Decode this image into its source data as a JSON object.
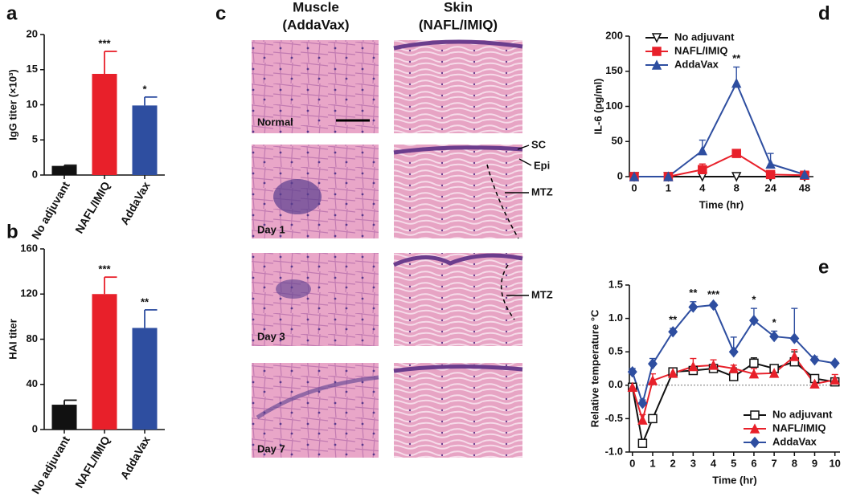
{
  "chart_data": [
    {
      "type": "bar",
      "panel": "a",
      "ylabel": "IgG titer (×10³)",
      "categories": [
        "No adjuvant",
        "NAFL/IMIQ",
        "AddaVax"
      ],
      "values": [
        1.3,
        14.4,
        9.9
      ],
      "errors": [
        0.1,
        3.2,
        1.2
      ],
      "significance": [
        null,
        "***",
        "*"
      ],
      "colors": [
        "#111111",
        "#e8202a",
        "#2e4ea0"
      ],
      "ylim": [
        0,
        20
      ],
      "yticks": [
        0,
        5,
        10,
        15,
        20
      ]
    },
    {
      "type": "bar",
      "panel": "b",
      "ylabel": "HAI titer",
      "categories": [
        "No adjuvant",
        "NAFL/IMIQ",
        "AddaVax"
      ],
      "values": [
        22,
        120,
        90
      ],
      "errors": [
        4,
        15,
        16
      ],
      "significance": [
        null,
        "***",
        "**"
      ],
      "colors": [
        "#111111",
        "#e8202a",
        "#2e4ea0"
      ],
      "ylim": [
        0,
        160
      ],
      "yticks": [
        0,
        40,
        80,
        120,
        160
      ]
    },
    {
      "type": "line",
      "panel": "d",
      "ylabel": "IL-6 (pg/ml)",
      "xlabel": "Time (hr)",
      "categories": [
        "0",
        "1",
        "4",
        "8",
        "24",
        "48"
      ],
      "series": [
        {
          "name": "No adjuvant",
          "color": "#111111",
          "marker": "triangle-down-open",
          "values": [
            0,
            0,
            0,
            0,
            0,
            0
          ],
          "errors": [
            0,
            0,
            0,
            0,
            0,
            0
          ]
        },
        {
          "name": "NAFL/IMIQ",
          "color": "#e8202a",
          "marker": "square",
          "values": [
            0,
            0,
            10,
            33,
            3,
            2
          ],
          "errors": [
            0,
            0,
            8,
            4,
            2,
            1
          ]
        },
        {
          "name": "AddaVax",
          "color": "#2e4ea0",
          "marker": "triangle-up",
          "values": [
            0,
            0,
            37,
            133,
            18,
            3
          ],
          "errors": [
            0,
            0,
            15,
            23,
            15,
            1
          ]
        }
      ],
      "significance": [
        null,
        null,
        null,
        "**",
        null,
        null
      ],
      "ylim": [
        0,
        200
      ],
      "yticks": [
        0,
        50,
        100,
        150,
        200
      ],
      "legend": "upper left"
    },
    {
      "type": "line",
      "panel": "e",
      "ylabel": "Relative temperature °C",
      "xlabel": "Time (hr)",
      "x": [
        0,
        0.5,
        1,
        2,
        3,
        4,
        5,
        6,
        7,
        8,
        9,
        10
      ],
      "series": [
        {
          "name": "No adjuvant",
          "color": "#111111",
          "marker": "square-open",
          "values": [
            -0.03,
            -0.87,
            -0.5,
            0.2,
            0.22,
            0.25,
            0.13,
            0.33,
            0.25,
            0.35,
            0.1,
            0.05
          ],
          "errors": [
            0.03,
            0.03,
            0.03,
            0.03,
            0.05,
            0.03,
            0.13,
            0.08,
            0.04,
            0.15,
            0.03,
            0.04
          ]
        },
        {
          "name": "NAFL/IMIQ",
          "color": "#e8202a",
          "marker": "triangle-up",
          "values": [
            -0.03,
            -0.52,
            0.07,
            0.18,
            0.28,
            0.3,
            0.25,
            0.17,
            0.18,
            0.43,
            0.02,
            0.08
          ],
          "errors": [
            0.03,
            0.08,
            0.1,
            0.05,
            0.12,
            0.08,
            0.05,
            0.08,
            0.05,
            0.1,
            0.05,
            0.08
          ]
        },
        {
          "name": "AddaVax",
          "color": "#2e4ea0",
          "marker": "diamond",
          "values": [
            0.2,
            -0.27,
            0.32,
            0.8,
            1.17,
            1.2,
            0.5,
            0.97,
            0.73,
            0.7,
            0.38,
            0.33
          ],
          "errors": [
            0.05,
            0.05,
            0.08,
            0.05,
            0.08,
            0.03,
            0.22,
            0.18,
            0.08,
            0.45,
            0.05,
            0.02
          ]
        }
      ],
      "significance": [
        null,
        null,
        null,
        "**",
        "**",
        "***",
        null,
        "*",
        "*",
        null,
        null,
        null
      ],
      "xlim": [
        -0.15,
        10.25
      ],
      "xticks": [
        0,
        1,
        2,
        3,
        4,
        5,
        6,
        7,
        8,
        9,
        10
      ],
      "ylim": [
        -1.0,
        1.5
      ],
      "yticks": [
        {
          "value": -1.0,
          "label": "-1.0"
        },
        -0.5,
        {
          "value": 0,
          "label": "0.0"
        },
        0.5,
        {
          "value": 1.0,
          "label": "1.0"
        },
        1.5
      ],
      "zero_line": true,
      "legend": "lower right"
    }
  ],
  "panel_c": {
    "label": "c",
    "muscle": [
      "Muscle",
      "(AddaVax)"
    ],
    "skin": [
      "Skin",
      "(NAFL/IMIQ)"
    ],
    "rows": [
      "Normal",
      "Day 1",
      "Day 3",
      "Day 7"
    ],
    "annotations": [
      "SC",
      "Epi",
      "MTZ",
      "MTZ"
    ]
  }
}
